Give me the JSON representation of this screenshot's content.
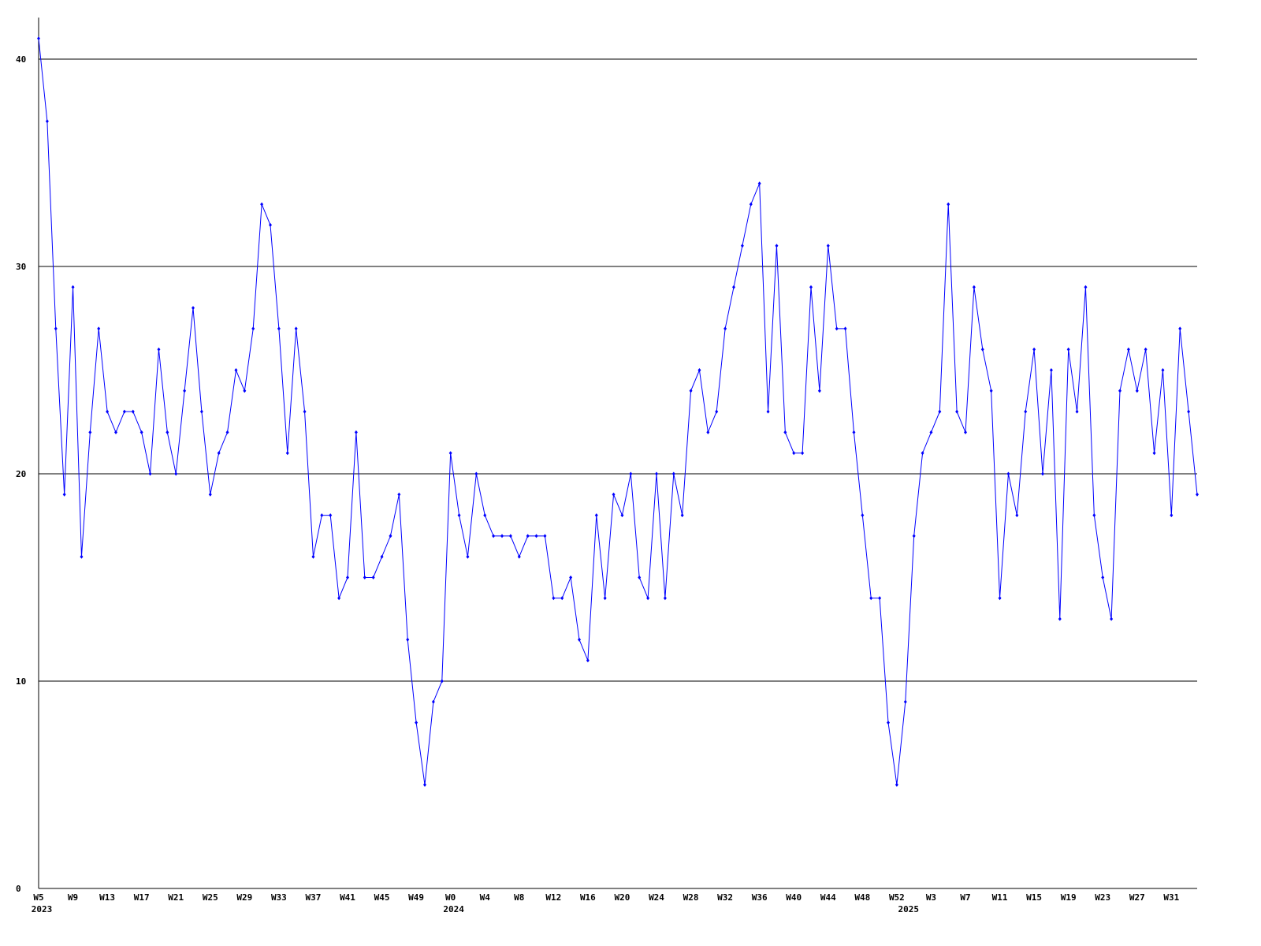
{
  "chart_data": {
    "type": "line",
    "categories": [
      "W5",
      null,
      null,
      null,
      "W9",
      null,
      null,
      null,
      "W13",
      null,
      null,
      null,
      "W17",
      null,
      null,
      null,
      "W21",
      null,
      null,
      null,
      "W25",
      null,
      null,
      null,
      "W29",
      null,
      null,
      null,
      "W33",
      null,
      null,
      null,
      "W37",
      null,
      null,
      null,
      "W41",
      null,
      null,
      null,
      "W45",
      null,
      null,
      null,
      "W49",
      null,
      null,
      null,
      "W0",
      null,
      null,
      null,
      "W4",
      null,
      null,
      null,
      "W8",
      null,
      null,
      null,
      "W12",
      null,
      null,
      null,
      "W16",
      null,
      null,
      null,
      "W20",
      null,
      null,
      null,
      "W24",
      null,
      null,
      null,
      "W28",
      null,
      null,
      null,
      "W32",
      null,
      null,
      null,
      "W36",
      null,
      null,
      null,
      "W40",
      null,
      null,
      null,
      "W44",
      null,
      null,
      null,
      "W48",
      null,
      null,
      null,
      "W52",
      null,
      null,
      null,
      "W3",
      null,
      null,
      null,
      "W7",
      null,
      null,
      null,
      "W11",
      null,
      null,
      null,
      "W15",
      null,
      null,
      null,
      "W19",
      null,
      null,
      null,
      "W23",
      null,
      null,
      null,
      "W27",
      null,
      null,
      null,
      "W31",
      null,
      null,
      null
    ],
    "years": [
      {
        "at": 0,
        "label": "2023"
      },
      {
        "at": 48,
        "label": "2024"
      },
      {
        "at": 101,
        "label": "2025"
      }
    ],
    "values": [
      41,
      37,
      27,
      19,
      29,
      16,
      22,
      27,
      23,
      22,
      23,
      23,
      22,
      20,
      26,
      22,
      20,
      24,
      28,
      23,
      19,
      21,
      22,
      25,
      24,
      27,
      33,
      32,
      27,
      21,
      27,
      23,
      16,
      18,
      18,
      14,
      15,
      22,
      15,
      15,
      16,
      17,
      19,
      12,
      8,
      5,
      9,
      10,
      21,
      18,
      16,
      20,
      18,
      17,
      17,
      17,
      16,
      17,
      17,
      17,
      14,
      14,
      15,
      12,
      11,
      18,
      14,
      19,
      18,
      20,
      15,
      14,
      20,
      14,
      20,
      18,
      24,
      25,
      22,
      23,
      27,
      29,
      31,
      33,
      34,
      23,
      31,
      22,
      21,
      21,
      29,
      24,
      31,
      27,
      27,
      22,
      18,
      14,
      14,
      8,
      5,
      9,
      17,
      21,
      22,
      23,
      33,
      23,
      22,
      29,
      26,
      24,
      14,
      20,
      18,
      23,
      26,
      20,
      25,
      13,
      26,
      23,
      29,
      18,
      15,
      13,
      24,
      26,
      24,
      26,
      21,
      25,
      18,
      27,
      23,
      19
    ],
    "color": "#0000ff",
    "ylim": [
      0,
      42
    ],
    "yticks": [
      0,
      10,
      20,
      30,
      40
    ],
    "grid": true
  }
}
